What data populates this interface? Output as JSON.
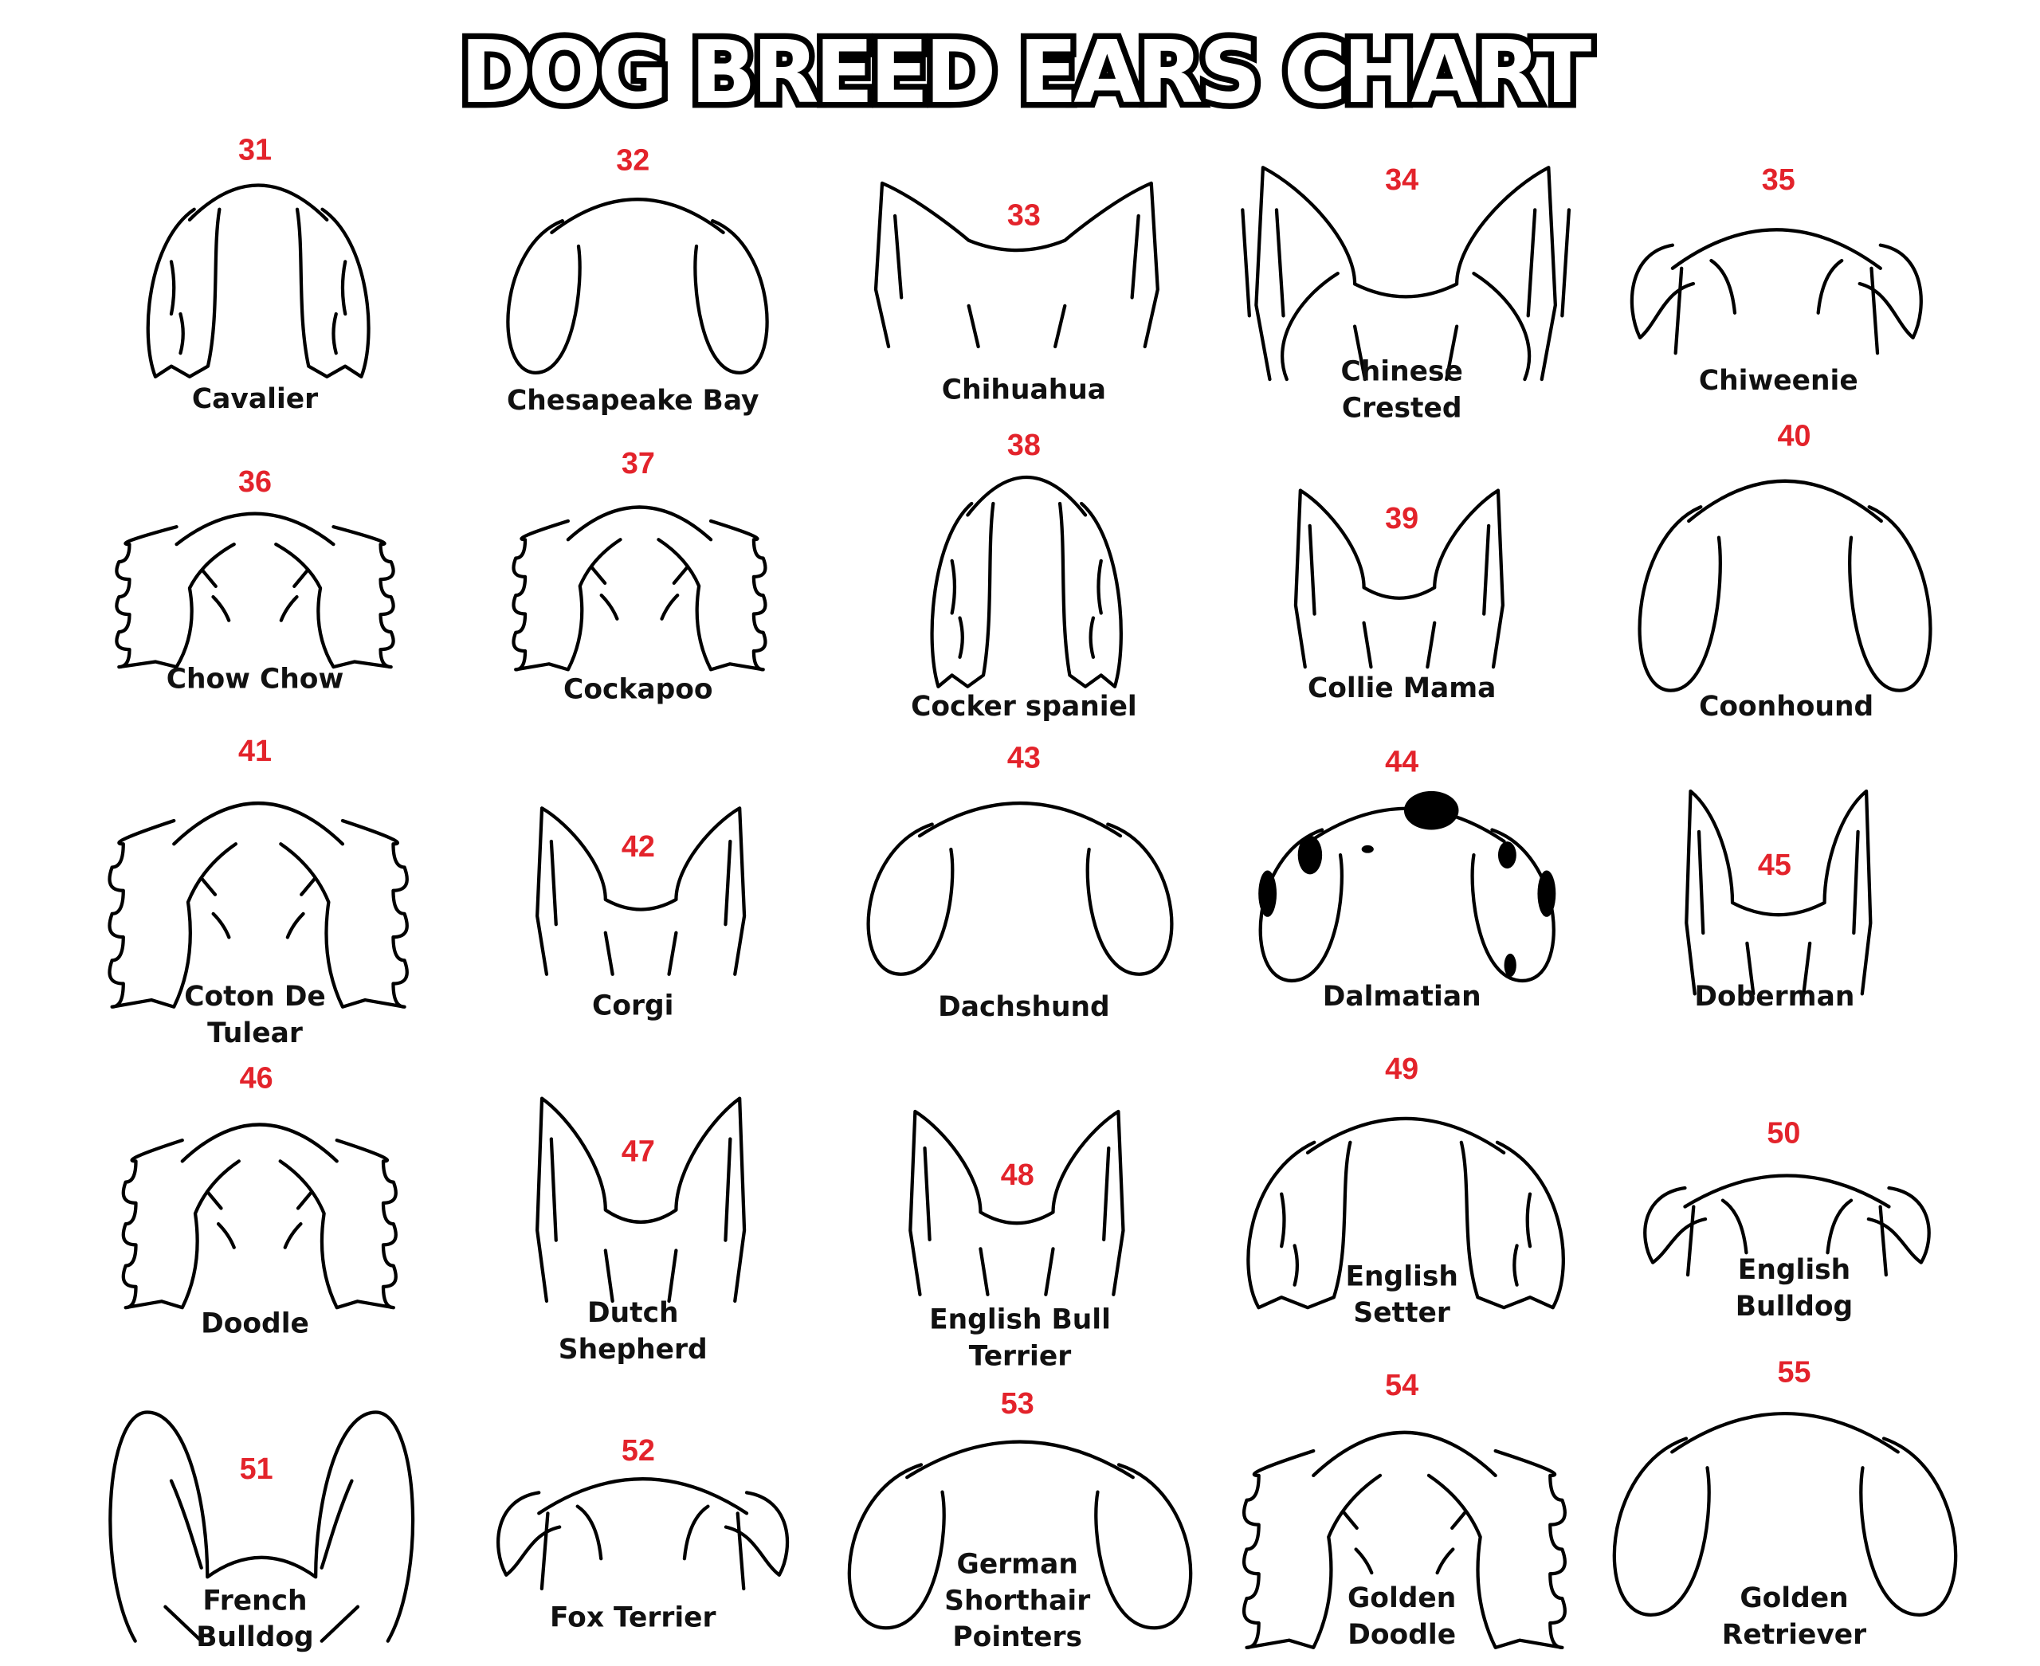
{
  "title": "DOG BREED EARS CHART",
  "accent_color": "#e3232b",
  "breeds": [
    {
      "number": "31",
      "name": [
        "Cavalier"
      ]
    },
    {
      "number": "32",
      "name": [
        "Chesapeake Bay"
      ]
    },
    {
      "number": "33",
      "name": [
        "Chihuahua"
      ]
    },
    {
      "number": "34",
      "name": [
        "Chinese",
        "Crested"
      ]
    },
    {
      "number": "35",
      "name": [
        "Chiweenie"
      ]
    },
    {
      "number": "36",
      "name": [
        "Chow Chow"
      ]
    },
    {
      "number": "37",
      "name": [
        "Cockapoo"
      ]
    },
    {
      "number": "38",
      "name": [
        "Cocker spaniel"
      ]
    },
    {
      "number": "39",
      "name": [
        "Collie Mama"
      ]
    },
    {
      "number": "40",
      "name": [
        "Coonhound"
      ]
    },
    {
      "number": "41",
      "name": [
        "Coton De",
        "Tulear"
      ]
    },
    {
      "number": "42",
      "name": [
        "Corgi"
      ]
    },
    {
      "number": "43",
      "name": [
        "Dachshund"
      ]
    },
    {
      "number": "44",
      "name": [
        "Dalmatian"
      ]
    },
    {
      "number": "45",
      "name": [
        "Doberman"
      ]
    },
    {
      "number": "46",
      "name": [
        "Doodle"
      ]
    },
    {
      "number": "47",
      "name": [
        "Dutch",
        "Shepherd"
      ]
    },
    {
      "number": "48",
      "name": [
        "English Bull",
        "Terrier"
      ]
    },
    {
      "number": "49",
      "name": [
        "English",
        "Setter"
      ]
    },
    {
      "number": "50",
      "name": [
        "English",
        "Bulldog"
      ]
    },
    {
      "number": "51",
      "name": [
        "French",
        "Bulldog"
      ]
    },
    {
      "number": "52",
      "name": [
        "Fox Terrier"
      ]
    },
    {
      "number": "53",
      "name": [
        "German",
        "Shorthair",
        "Pointers"
      ]
    },
    {
      "number": "54",
      "name": [
        "Golden",
        "Doodle"
      ]
    },
    {
      "number": "55",
      "name": [
        "Golden",
        "Retriever"
      ]
    }
  ]
}
